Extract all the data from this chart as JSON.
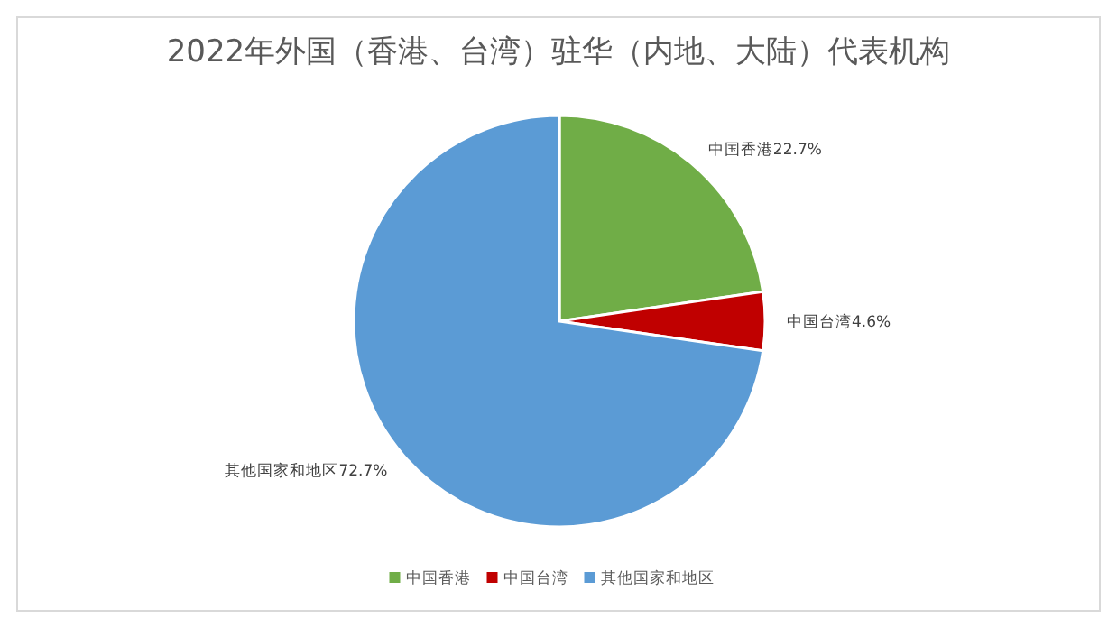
{
  "chart_data": {
    "type": "pie",
    "title": "2022年外国（香港、台湾）驻华（内地、大陆）代表机构",
    "categories": [
      "中国香港",
      "中国台湾",
      "其他国家和地区"
    ],
    "values": [
      22.7,
      4.6,
      72.7
    ],
    "colors": [
      "#70ad47",
      "#c00000",
      "#5b9bd5"
    ],
    "value_labels": [
      "中国香港22.7%",
      "中国台湾4.6%",
      "其他国家和地区72.7%"
    ],
    "legend": "bottom"
  }
}
